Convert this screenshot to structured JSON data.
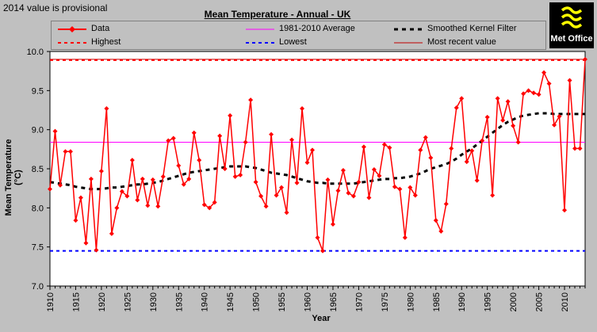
{
  "note": "2014 value is provisional",
  "logo": {
    "text": "Met Office"
  },
  "chart_data": {
    "type": "line",
    "title": "Mean Temperature - Annual - UK",
    "xlabel": "Year",
    "ylabel": "Mean Temperature (°C)",
    "xlim": [
      1910,
      2014
    ],
    "ylim": [
      7.0,
      10.0
    ],
    "yticks": [
      "7.0",
      "7.5",
      "8.0",
      "8.5",
      "9.0",
      "9.5",
      "10.0"
    ],
    "xticks": [
      "1910",
      "1915",
      "1920",
      "1925",
      "1930",
      "1935",
      "1940",
      "1945",
      "1950",
      "1955",
      "1960",
      "1965",
      "1970",
      "1975",
      "1980",
      "1985",
      "1990",
      "1995",
      "2000",
      "2005",
      "2010"
    ],
    "legend": [
      {
        "label": "Data",
        "color": "#ff0000"
      },
      {
        "label": "1981-2010 Average",
        "color": "#ff00ff"
      },
      {
        "label": "Smoothed Kernel Filter",
        "color": "#000000"
      },
      {
        "label": "Highest",
        "color": "#ff0000"
      },
      {
        "label": "Lowest",
        "color": "#0000ff"
      },
      {
        "label": "Most recent value",
        "color": "#c00000"
      }
    ],
    "x": [
      1910,
      1911,
      1912,
      1913,
      1914,
      1915,
      1916,
      1917,
      1918,
      1919,
      1920,
      1921,
      1922,
      1923,
      1924,
      1925,
      1926,
      1927,
      1928,
      1929,
      1930,
      1931,
      1932,
      1933,
      1934,
      1935,
      1936,
      1937,
      1938,
      1939,
      1940,
      1941,
      1942,
      1943,
      1944,
      1945,
      1946,
      1947,
      1948,
      1949,
      1950,
      1951,
      1952,
      1953,
      1954,
      1955,
      1956,
      1957,
      1958,
      1959,
      1960,
      1961,
      1962,
      1963,
      1964,
      1965,
      1966,
      1967,
      1968,
      1969,
      1970,
      1971,
      1972,
      1973,
      1974,
      1975,
      1976,
      1977,
      1978,
      1979,
      1980,
      1981,
      1982,
      1983,
      1984,
      1985,
      1986,
      1987,
      1988,
      1989,
      1990,
      1991,
      1992,
      1993,
      1994,
      1995,
      1996,
      1997,
      1998,
      1999,
      2000,
      2001,
      2002,
      2003,
      2004,
      2005,
      2006,
      2007,
      2008,
      2009,
      2010,
      2011,
      2012,
      2013,
      2014
    ],
    "series": [
      {
        "name": "Data",
        "values": [
          8.24,
          8.98,
          8.29,
          8.72,
          8.72,
          7.84,
          8.13,
          7.55,
          8.37,
          7.46,
          8.47,
          9.27,
          7.67,
          8.0,
          8.21,
          8.15,
          8.61,
          8.1,
          8.37,
          8.03,
          8.36,
          8.02,
          8.4,
          8.86,
          8.89,
          8.54,
          8.3,
          8.37,
          8.96,
          8.61,
          8.04,
          8.0,
          8.07,
          8.92,
          8.5,
          9.18,
          8.4,
          8.42,
          8.84,
          9.38,
          8.33,
          8.15,
          8.02,
          8.94,
          8.16,
          8.26,
          7.94,
          8.87,
          8.32,
          9.27,
          8.58,
          8.74,
          7.62,
          7.45,
          8.36,
          7.79,
          8.22,
          8.48,
          8.19,
          8.15,
          8.33,
          8.78,
          8.13,
          8.49,
          8.41,
          8.81,
          8.77,
          8.27,
          8.24,
          7.62,
          8.26,
          8.16,
          8.74,
          8.9,
          8.64,
          7.84,
          7.7,
          8.05,
          8.76,
          9.28,
          9.4,
          8.59,
          8.73,
          8.35,
          8.86,
          9.16,
          8.16,
          9.4,
          9.12,
          9.36,
          9.05,
          8.84,
          9.46,
          9.5,
          9.47,
          9.45,
          9.73,
          9.59,
          9.06,
          9.17,
          7.97,
          9.63,
          8.76,
          8.76,
          9.9
        ]
      },
      {
        "name": "Smoothed Kernel Filter",
        "values": [
          8.33,
          8.32,
          8.31,
          8.3,
          8.29,
          8.27,
          8.26,
          8.25,
          8.24,
          8.24,
          8.24,
          8.25,
          8.26,
          8.26,
          8.27,
          8.28,
          8.29,
          8.3,
          8.3,
          8.31,
          8.32,
          8.33,
          8.35,
          8.37,
          8.39,
          8.41,
          8.43,
          8.45,
          8.46,
          8.47,
          8.48,
          8.49,
          8.5,
          8.51,
          8.52,
          8.53,
          8.53,
          8.53,
          8.53,
          8.52,
          8.51,
          8.49,
          8.47,
          8.45,
          8.44,
          8.43,
          8.42,
          8.4,
          8.38,
          8.36,
          8.34,
          8.33,
          8.32,
          8.32,
          8.31,
          8.31,
          8.31,
          8.31,
          8.31,
          8.31,
          8.32,
          8.33,
          8.34,
          8.35,
          8.36,
          8.37,
          8.37,
          8.38,
          8.38,
          8.39,
          8.4,
          8.42,
          8.44,
          8.47,
          8.5,
          8.52,
          8.54,
          8.56,
          8.59,
          8.63,
          8.68,
          8.72,
          8.76,
          8.81,
          8.86,
          8.91,
          8.96,
          9.01,
          9.06,
          9.1,
          9.13,
          9.16,
          9.18,
          9.19,
          9.2,
          9.21,
          9.21,
          9.21,
          9.2,
          9.2,
          9.2,
          9.2,
          9.2,
          9.2,
          9.2
        ]
      }
    ],
    "average": 8.84,
    "highest": 9.9,
    "lowest": 7.45,
    "most_recent": 9.9
  }
}
